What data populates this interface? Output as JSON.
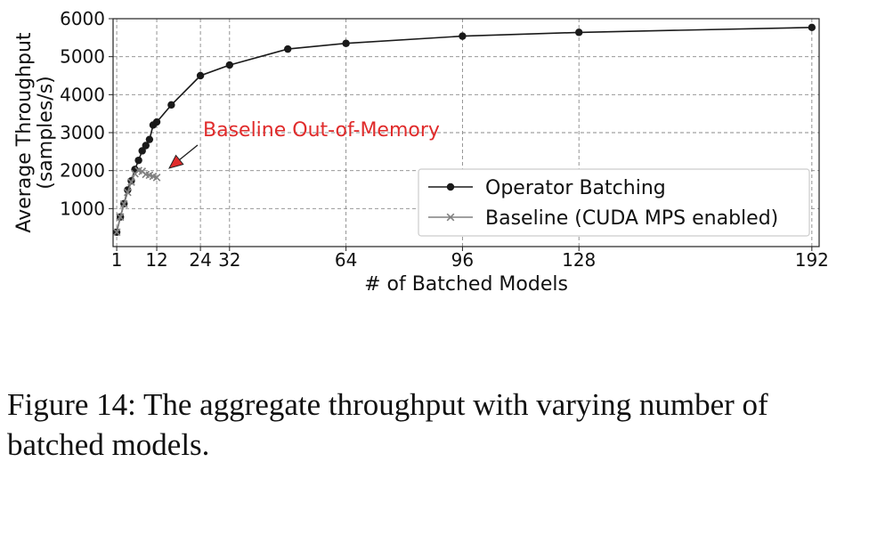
{
  "chart_data": {
    "type": "line",
    "ylabel_line1": "Average Throughput",
    "ylabel_line2": "(samples/s)",
    "xlabel": "# of Batched Models",
    "xlim": [
      0,
      194
    ],
    "ylim": [
      0,
      6000
    ],
    "x_ticks": [
      1,
      12,
      24,
      32,
      64,
      96,
      128,
      192
    ],
    "y_ticks": [
      1000,
      2000,
      3000,
      4000,
      5000,
      6000
    ],
    "y_tick_labels": [
      "1000",
      "2000",
      "3000",
      "4000",
      "5000",
      "6000"
    ],
    "grid": true,
    "legend_position": "lower-right",
    "series": [
      {
        "name": "Operator Batching",
        "color": "#1a1a1a",
        "marker": "circle",
        "x": [
          1,
          2,
          3,
          4,
          5,
          6,
          7,
          8,
          9,
          10,
          11,
          12,
          16,
          24,
          32,
          48,
          64,
          96,
          128,
          192
        ],
        "y": [
          380,
          780,
          1130,
          1490,
          1730,
          2030,
          2270,
          2520,
          2660,
          2820,
          3200,
          3280,
          3730,
          4500,
          4780,
          5200,
          5350,
          5540,
          5640,
          5770
        ]
      },
      {
        "name": "Baseline (CUDA MPS enabled)",
        "color": "#808080",
        "marker": "x",
        "x": [
          1,
          2,
          3,
          4,
          5,
          6,
          7,
          8,
          9,
          10,
          11,
          12
        ],
        "y": [
          380,
          780,
          1120,
          1430,
          1700,
          1920,
          2000,
          1980,
          1900,
          1880,
          1850,
          1820
        ]
      }
    ],
    "annotation": {
      "text": "Baseline Out-of-Memory",
      "color": "#e02b2b"
    }
  },
  "caption": "Figure 14: The aggregate throughput with varying number of batched models."
}
